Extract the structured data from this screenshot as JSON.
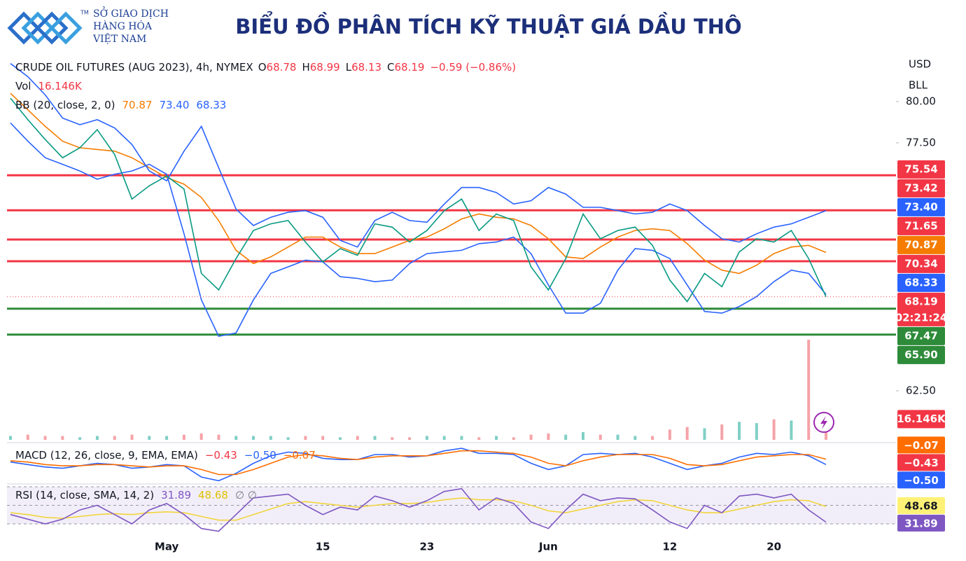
{
  "header": {
    "logo_lines": [
      "SỞ GIAO DỊCH",
      "HÀNG HÓA",
      "VIỆT NAM"
    ],
    "logo_mark": "TM",
    "title": "BIỂU ĐỒ PHÂN TÍCH KỸ THUẬT GIÁ DẦU THÔ"
  },
  "chart_data": {
    "type": "line",
    "info": "CRUDE OIL FUTURES (AUG 2023), 4h, NYMEX",
    "ohlc_labels": [
      "O",
      "H",
      "L",
      "C"
    ],
    "ohlc": [
      68.78,
      68.99,
      68.13,
      68.19
    ],
    "change": "−0.59 (−0.86%)",
    "currency": "USD",
    "unit": "BLL",
    "categories": [
      null,
      null,
      null,
      null,
      null,
      null,
      null,
      null,
      null,
      "May",
      null,
      null,
      null,
      null,
      null,
      null,
      null,
      null,
      "15",
      null,
      null,
      null,
      null,
      null,
      "23",
      null,
      null,
      null,
      null,
      null,
      null,
      "Jun",
      null,
      null,
      null,
      null,
      null,
      null,
      "12",
      null,
      null,
      null,
      null,
      null,
      "20",
      null,
      null,
      null
    ],
    "ylim": [
      59.45,
      82.54
    ],
    "yticks": [
      {
        "value": 80,
        "label": "80.00"
      },
      {
        "value": 77.5,
        "label": "77.50"
      },
      {
        "value": 62.5,
        "label": "62.50"
      }
    ],
    "price": {
      "color": "#089981",
      "label_color": "#f23645",
      "last_label": "68.19",
      "countdown": "02:21:24",
      "values": [
        80.2,
        78.9,
        77.7,
        76.6,
        77.2,
        78.3,
        76.8,
        74.1,
        74.9,
        75.5,
        74.7,
        69.6,
        68.6,
        70.5,
        72.2,
        72.6,
        72.8,
        71.5,
        70.3,
        71.1,
        70.7,
        72.6,
        72.4,
        71.5,
        72.2,
        73.4,
        74.1,
        72.2,
        73.2,
        72.8,
        70.0,
        68.6,
        70.5,
        73.2,
        71.7,
        72.2,
        72.4,
        71.3,
        69.2,
        67.9,
        69.6,
        68.8,
        70.9,
        71.7,
        71.5,
        72.2,
        70.5,
        68.19
      ]
    },
    "bb": {
      "legend": "BB (20, close, 2, 0)",
      "series": [
        {
          "color": "#f57c00",
          "value_label": "70.87",
          "values": [
            80.5,
            79.5,
            78.5,
            77.6,
            77.2,
            77.1,
            77.0,
            76.6,
            76.0,
            75.4,
            75.0,
            74.2,
            72.8,
            71.0,
            70.2,
            70.6,
            71.2,
            71.8,
            71.8,
            71.2,
            70.8,
            70.8,
            71.2,
            71.6,
            71.8,
            72.3,
            72.9,
            73.2,
            73.0,
            72.9,
            72.5,
            71.7,
            70.6,
            70.5,
            71.2,
            71.8,
            72.2,
            72.3,
            72.2,
            71.4,
            70.4,
            69.8,
            69.6,
            70.1,
            70.8,
            71.2,
            71.3,
            70.87
          ]
        },
        {
          "color": "#2962ff",
          "value_label": "73.40",
          "values": [
            82.3,
            81.5,
            80.4,
            79.0,
            78.6,
            78.9,
            78.4,
            77.4,
            75.8,
            75.2,
            77.0,
            78.5,
            76.0,
            73.5,
            72.5,
            73.0,
            73.3,
            73.4,
            73.0,
            71.6,
            71.2,
            72.8,
            73.3,
            72.8,
            72.7,
            73.8,
            74.8,
            74.8,
            74.5,
            73.8,
            74.0,
            74.8,
            74.4,
            73.6,
            73.6,
            73.4,
            73.2,
            73.3,
            73.8,
            73.4,
            72.5,
            71.7,
            71.5,
            72.0,
            72.4,
            72.6,
            73.0,
            73.4
          ]
        },
        {
          "color": "#2962ff",
          "value_label": "68.33",
          "values": [
            78.7,
            77.6,
            76.6,
            76.2,
            75.8,
            75.3,
            75.6,
            75.8,
            76.2,
            75.6,
            72.0,
            68.0,
            65.8,
            66.0,
            68.0,
            69.6,
            70.0,
            70.4,
            70.3,
            69.4,
            69.3,
            69.1,
            69.2,
            70.2,
            70.8,
            70.9,
            71.0,
            71.4,
            71.5,
            71.8,
            70.8,
            68.9,
            67.2,
            67.2,
            67.8,
            69.8,
            71.1,
            71.0,
            70.5,
            68.9,
            67.3,
            67.2,
            67.6,
            68.2,
            69.1,
            69.8,
            69.6,
            68.33
          ]
        }
      ]
    },
    "levels": [
      {
        "value": 75.54,
        "label": "75.54",
        "color": "#f23645"
      },
      {
        "value": 73.42,
        "label": "73.42",
        "color": "#f23645"
      },
      {
        "value": 71.65,
        "label": "71.65",
        "color": "#f23645"
      },
      {
        "value": 70.34,
        "label": "70.34",
        "color": "#f23645"
      },
      {
        "value": 67.47,
        "label": "67.47",
        "color": "#2e8b3a"
      },
      {
        "value": 65.9,
        "label": "65.90",
        "color": "#2e8b3a"
      }
    ],
    "volume": {
      "legend": "Vol",
      "value_label": "16.146K",
      "up_color": "#7fcfc4",
      "down_color": "#f5a3a8",
      "label_color": "#f23645",
      "values": [
        3,
        4,
        3,
        3,
        2,
        3,
        3,
        4,
        3,
        3,
        4,
        5,
        4,
        3,
        3,
        3,
        2,
        3,
        3,
        2,
        3,
        3,
        2,
        2,
        3,
        3,
        3,
        2,
        3,
        2,
        4,
        5,
        4,
        6,
        4,
        4,
        3,
        3,
        8,
        10,
        9,
        12,
        14,
        13,
        16,
        15,
        78,
        16.146
      ]
    },
    "macd": {
      "legend": "MACD (12, 26, close, 9, EMA, EMA)",
      "ylim": [
        -2,
        1.2
      ],
      "histogram": {
        "color": "#f23645",
        "value": -0.43,
        "value_label": "−0.43"
      },
      "macd": {
        "color": "#2962ff",
        "value_label": "−0.50",
        "values": [
          -0.3,
          -0.5,
          -0.7,
          -0.8,
          -0.6,
          -0.4,
          -0.5,
          -0.8,
          -0.7,
          -0.5,
          -0.6,
          -1.5,
          -1.8,
          -1.2,
          -0.4,
          0.2,
          0.5,
          0.4,
          0.0,
          -0.1,
          -0.1,
          0.3,
          0.3,
          0.1,
          0.2,
          0.6,
          0.8,
          0.4,
          0.4,
          0.3,
          -0.4,
          -0.9,
          -0.6,
          0.3,
          0.4,
          0.3,
          0.4,
          0.1,
          -0.4,
          -0.9,
          -0.6,
          -0.4,
          0.1,
          0.4,
          0.3,
          0.5,
          0.2,
          -0.5
        ]
      },
      "signal": {
        "color": "#ff6d00",
        "value_label": "−0.07",
        "values": [
          -0.2,
          -0.3,
          -0.5,
          -0.6,
          -0.6,
          -0.5,
          -0.5,
          -0.6,
          -0.7,
          -0.6,
          -0.6,
          -0.9,
          -1.3,
          -1.3,
          -0.9,
          -0.4,
          0.1,
          0.3,
          0.2,
          0.0,
          -0.1,
          0.1,
          0.2,
          0.2,
          0.2,
          0.4,
          0.6,
          0.6,
          0.5,
          0.4,
          0.1,
          -0.4,
          -0.6,
          -0.2,
          0.1,
          0.3,
          0.3,
          0.3,
          0.0,
          -0.5,
          -0.6,
          -0.5,
          -0.2,
          0.1,
          0.2,
          0.3,
          0.3,
          -0.07
        ]
      }
    },
    "rsi": {
      "legend": "RSI (14, close, SMA, 14, 2)",
      "ylim": [
        20.9,
        72.3
      ],
      "bands": [
        70,
        50,
        30
      ],
      "extra": "∅ ∅",
      "rsi": {
        "color": "#7e57c2",
        "values": [
          40,
          35,
          30,
          35,
          45,
          50,
          40,
          30,
          45,
          52,
          40,
          25,
          22,
          40,
          58,
          60,
          62,
          50,
          40,
          48,
          45,
          60,
          55,
          48,
          55,
          65,
          68,
          45,
          58,
          52,
          32,
          25,
          45,
          62,
          55,
          58,
          57,
          45,
          32,
          25,
          50,
          42,
          60,
          62,
          58,
          62,
          45,
          31.89
        ]
      },
      "ma": {
        "color": "#f2d43c",
        "values": [
          42,
          40,
          37,
          36,
          38,
          40,
          41,
          40,
          42,
          43,
          42,
          38,
          34,
          34,
          40,
          46,
          52,
          54,
          52,
          50,
          48,
          50,
          52,
          52,
          53,
          56,
          58,
          56,
          56,
          55,
          50,
          44,
          42,
          46,
          50,
          54,
          56,
          55,
          50,
          45,
          42,
          42,
          46,
          50,
          54,
          56,
          55,
          48.68
        ]
      }
    }
  }
}
